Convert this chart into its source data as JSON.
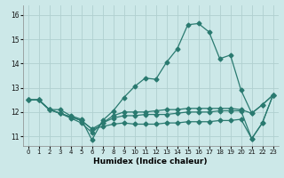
{
  "xlabel": "Humidex (Indice chaleur)",
  "background_color": "#cce8e8",
  "grid_color": "#b0d0d0",
  "line_color": "#2a7a70",
  "xlim": [
    -0.5,
    23.5
  ],
  "ylim": [
    10.6,
    16.4
  ],
  "yticks": [
    11,
    12,
    13,
    14,
    15,
    16
  ],
  "xticks": [
    0,
    1,
    2,
    3,
    4,
    5,
    6,
    7,
    8,
    9,
    10,
    11,
    12,
    13,
    14,
    15,
    16,
    17,
    18,
    19,
    20,
    21,
    22,
    23
  ],
  "line1": [
    12.5,
    12.5,
    12.1,
    12.1,
    11.85,
    11.7,
    10.85,
    11.65,
    12.05,
    12.6,
    13.05,
    13.4,
    13.35,
    14.05,
    14.6,
    15.6,
    15.65,
    15.3,
    14.2,
    14.35,
    12.9,
    11.95,
    12.3,
    12.7
  ],
  "line2": [
    12.5,
    12.5,
    12.1,
    11.95,
    11.75,
    11.55,
    11.15,
    11.55,
    11.85,
    12.0,
    12.0,
    12.0,
    12.05,
    12.1,
    12.1,
    12.15,
    12.15,
    12.15,
    12.15,
    12.15,
    12.1,
    11.95,
    12.3,
    12.7
  ],
  "line3": [
    12.5,
    12.5,
    12.1,
    11.95,
    11.8,
    11.65,
    11.3,
    11.55,
    11.75,
    11.85,
    11.85,
    11.9,
    11.9,
    11.9,
    11.95,
    12.0,
    12.0,
    12.0,
    12.05,
    12.05,
    12.05,
    10.9,
    11.55,
    12.7
  ],
  "line4": [
    12.5,
    12.5,
    12.1,
    11.95,
    11.8,
    11.65,
    11.3,
    11.4,
    11.5,
    11.55,
    11.5,
    11.5,
    11.5,
    11.55,
    11.55,
    11.6,
    11.6,
    11.6,
    11.65,
    11.65,
    11.7,
    10.9,
    11.55,
    12.7
  ],
  "markersize": 2.5,
  "linewidth": 0.9
}
